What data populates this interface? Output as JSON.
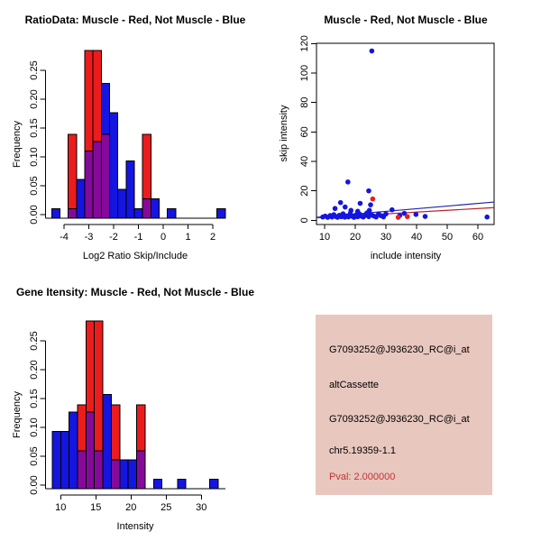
{
  "window": {
    "background": "#ffffff"
  },
  "colors": {
    "muscle_red": "#EC1C1C",
    "not_muscle_blue": "#1515E0",
    "overlap_purple": "#850A99",
    "fit_line_blue": "#2222AA",
    "fit_line_red": "#BB2222",
    "axis_black": "#000000",
    "info_box_bg": "#E8C7BF",
    "pval_red": "#C63333"
  },
  "chart_data": [
    {
      "type": "bar",
      "subtype": "overlaid-histogram",
      "title": "RatioData: Muscle - Red, Not Muscle - Blue",
      "xlabel": "Log2 Ratio Skip/Include",
      "ylabel": "Frequency",
      "xticks": [
        "-4",
        "-3",
        "-2",
        "-1",
        "0",
        "1",
        "2"
      ],
      "xtick_values": [
        -4,
        -3,
        -2,
        -1,
        0,
        1,
        2
      ],
      "ytick_labels": [
        "0.00",
        "0.05",
        "0.10",
        "0.15",
        "0.20",
        "0.25"
      ],
      "ytick_values": [
        0,
        0.05,
        0.1,
        0.15,
        0.2,
        0.25
      ],
      "xlim": [
        -4.5,
        2.5
      ],
      "ylim": [
        0,
        0.2857
      ],
      "grid": false,
      "series_legend": {
        "red": "Muscle",
        "blue": "Not Muscle",
        "purple": "overlap"
      },
      "bars": [
        {
          "x0": -4.5,
          "x1": -4.17,
          "red": 0,
          "blue": 0.016
        },
        {
          "x0": -3.83,
          "x1": -3.5,
          "red": 0.143,
          "blue": 0.016
        },
        {
          "x0": -3.5,
          "x1": -3.17,
          "red": 0,
          "blue": 0.066
        },
        {
          "x0": -3.17,
          "x1": -2.83,
          "red": 0.286,
          "blue": 0.115
        },
        {
          "x0": -2.83,
          "x1": -2.5,
          "red": 0.286,
          "blue": 0.131
        },
        {
          "x0": -2.5,
          "x1": -2.17,
          "red": 0.143,
          "blue": 0.23
        },
        {
          "x0": -2.17,
          "x1": -1.83,
          "red": 0,
          "blue": 0.18
        },
        {
          "x0": -1.83,
          "x1": -1.5,
          "red": 0,
          "blue": 0.049
        },
        {
          "x0": -1.5,
          "x1": -1.17,
          "red": 0,
          "blue": 0.098
        },
        {
          "x0": -1.17,
          "x1": -0.83,
          "red": 0,
          "blue": 0.016
        },
        {
          "x0": -0.83,
          "x1": -0.5,
          "red": 0.143,
          "blue": 0.033
        },
        {
          "x0": -0.5,
          "x1": -0.17,
          "red": 0,
          "blue": 0.033
        },
        {
          "x0": 0.17,
          "x1": 0.5,
          "red": 0,
          "blue": 0.016
        },
        {
          "x0": 2.17,
          "x1": 2.5,
          "red": 0,
          "blue": 0.016
        }
      ]
    },
    {
      "type": "scatter",
      "title": "Muscle - Red, Not Muscle - Blue",
      "xlabel": "include intensity",
      "ylabel": "skip intensity",
      "xticks": [
        "10",
        "20",
        "30",
        "40",
        "50",
        "60"
      ],
      "xtick_values": [
        10,
        20,
        30,
        40,
        50,
        60
      ],
      "yticks": [
        "0",
        "20",
        "40",
        "60",
        "80",
        "100",
        "120"
      ],
      "ytick_values": [
        0,
        20,
        40,
        60,
        80,
        100,
        120
      ],
      "xlim": [
        7,
        66
      ],
      "ylim": [
        0,
        120
      ],
      "grid": false,
      "blue_points": [
        [
          25.4,
          115
        ],
        [
          17.6,
          26
        ],
        [
          24.4,
          20
        ],
        [
          15.2,
          12
        ],
        [
          21.6,
          11.5
        ],
        [
          25,
          10.5
        ],
        [
          16.7,
          9
        ],
        [
          13.4,
          8
        ],
        [
          18.6,
          6.7
        ],
        [
          24.6,
          6.7
        ],
        [
          20.8,
          6.1
        ],
        [
          32,
          7.1
        ],
        [
          36,
          4.7
        ],
        [
          30,
          4.3
        ],
        [
          39.8,
          4
        ],
        [
          34.5,
          3.2
        ],
        [
          42.8,
          2.6
        ],
        [
          63,
          2.2
        ],
        [
          9.4,
          2.2
        ],
        [
          10.2,
          2.8
        ],
        [
          11,
          2
        ],
        [
          11.8,
          3.2
        ],
        [
          12.4,
          2.2
        ],
        [
          13,
          3.8
        ],
        [
          13.6,
          2.6
        ],
        [
          14.2,
          2
        ],
        [
          14.8,
          3.4
        ],
        [
          15.4,
          2.4
        ],
        [
          16,
          4.4
        ],
        [
          16.6,
          2.1
        ],
        [
          17.2,
          3
        ],
        [
          17.8,
          2.3
        ],
        [
          18.4,
          4.8
        ],
        [
          19,
          2.7
        ],
        [
          19.6,
          2
        ],
        [
          20.2,
          3.6
        ],
        [
          20.8,
          2.4
        ],
        [
          21.4,
          4.2
        ],
        [
          22,
          2.8
        ],
        [
          22.6,
          2.2
        ],
        [
          23.2,
          3.3
        ],
        [
          23.8,
          5
        ],
        [
          24.4,
          2.5
        ],
        [
          25.2,
          3.8
        ],
        [
          26,
          2.9
        ],
        [
          26.8,
          2.2
        ],
        [
          27.6,
          4.4
        ],
        [
          28.4,
          3.1
        ],
        [
          29.2,
          2.3
        ]
      ],
      "red_points": [
        [
          25.7,
          14.5
        ],
        [
          34,
          2
        ],
        [
          37,
          2.5
        ]
      ],
      "blue_line": {
        "x0": 7.4,
        "y0": 2.0,
        "x1": 65.3,
        "y1": 12.4
      },
      "red_line": {
        "x0": 7.4,
        "y0": 1.6,
        "x1": 65.3,
        "y1": 8.6
      }
    },
    {
      "type": "bar",
      "subtype": "overlaid-histogram",
      "title": "Gene Itensity: Muscle - Red, Not Muscle - Blue",
      "xlabel": "Intensity",
      "ylabel": "Frequency",
      "xticks": [
        "10",
        "15",
        "20",
        "25",
        "30"
      ],
      "xtick_values": [
        10,
        15,
        20,
        25,
        30
      ],
      "ytick_labels": [
        "0.00",
        "0.05",
        "0.10",
        "0.15",
        "0.20",
        "0.25"
      ],
      "ytick_values": [
        0,
        0.05,
        0.1,
        0.15,
        0.2,
        0.25
      ],
      "xlim": [
        8.8,
        32.4
      ],
      "ylim": [
        0,
        0.2857
      ],
      "grid": false,
      "series_legend": {
        "red": "Muscle",
        "blue": "Not Muscle",
        "purple": "overlap"
      },
      "bars": [
        {
          "x0": 8.8,
          "x1": 10.0,
          "red": 0,
          "blue": 0.098
        },
        {
          "x0": 10.0,
          "x1": 11.2,
          "red": 0,
          "blue": 0.098
        },
        {
          "x0": 11.2,
          "x1": 12.4,
          "red": 0,
          "blue": 0.131
        },
        {
          "x0": 12.4,
          "x1": 13.6,
          "red": 0.143,
          "blue": 0.065
        },
        {
          "x0": 13.6,
          "x1": 14.8,
          "red": 0.286,
          "blue": 0.131
        },
        {
          "x0": 14.8,
          "x1": 16.0,
          "red": 0.286,
          "blue": 0.065
        },
        {
          "x0": 16.0,
          "x1": 17.2,
          "red": 0,
          "blue": 0.161
        },
        {
          "x0": 17.2,
          "x1": 18.4,
          "red": 0.143,
          "blue": 0.049
        },
        {
          "x0": 18.4,
          "x1": 19.6,
          "red": 0,
          "blue": 0.049
        },
        {
          "x0": 19.6,
          "x1": 20.8,
          "red": 0,
          "blue": 0.049
        },
        {
          "x0": 20.8,
          "x1": 22.0,
          "red": 0.143,
          "blue": 0.065
        },
        {
          "x0": 23.2,
          "x1": 24.4,
          "red": 0,
          "blue": 0.016
        },
        {
          "x0": 26.6,
          "x1": 27.8,
          "red": 0,
          "blue": 0.016
        },
        {
          "x0": 31.2,
          "x1": 32.4,
          "red": 0,
          "blue": 0.016
        }
      ]
    }
  ],
  "info_box": {
    "probe_id": "G7093252@J936230_RC@i_at",
    "event_type": "altCassette",
    "probe_id_2": "G7093252@J936230_RC@i_at",
    "location": "chr5.19359-1.1",
    "pval": "Pval: 2.000000"
  }
}
